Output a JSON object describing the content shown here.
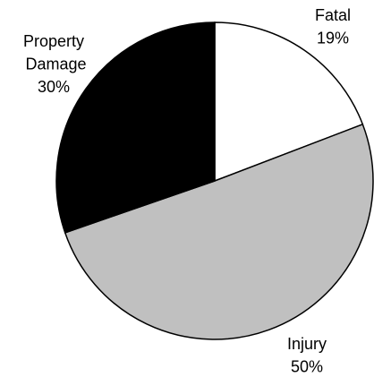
{
  "chart_data": {
    "type": "pie",
    "categories": [
      "Fatal",
      "Injury",
      "Property Damage"
    ],
    "values": [
      19,
      50,
      30
    ],
    "value_labels": [
      "19%",
      "50%",
      "30%"
    ],
    "colors": [
      "#ffffff",
      "#c0c0c0",
      "#000000"
    ]
  }
}
